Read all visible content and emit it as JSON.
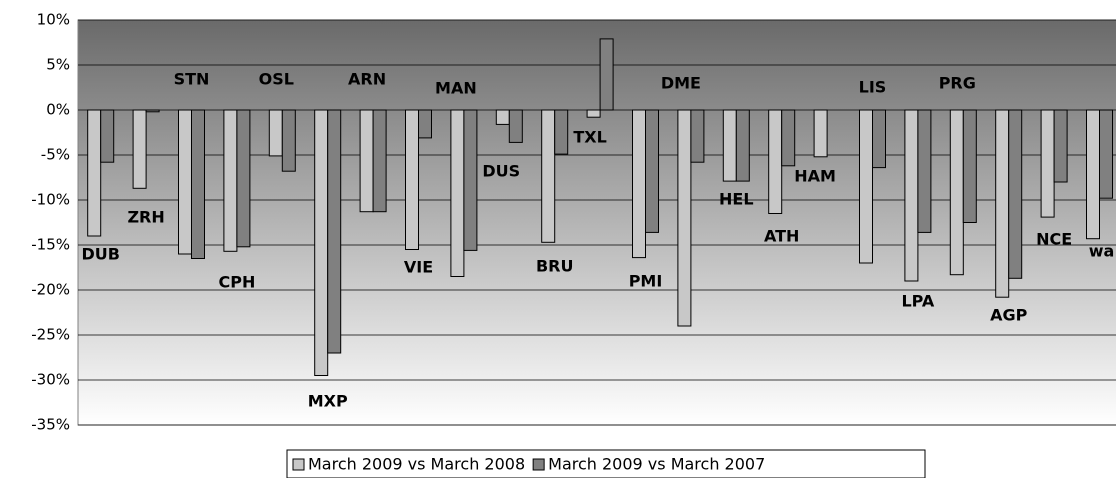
{
  "chart_data": {
    "type": "bar",
    "categories": [
      "DUB",
      "ZRH",
      "STN",
      "CPH",
      "OSL",
      "MXP",
      "ARN",
      "VIE",
      "MAN",
      "DUS",
      "BRU",
      "TXL",
      "PMI",
      "DME",
      "HEL",
      "ATH",
      "HAM",
      "LIS",
      "LPA",
      "PRG",
      "AGP",
      "NCE",
      "wa"
    ],
    "series": [
      {
        "name": "March 2009 vs March 2008",
        "color": "#c8c8c8",
        "values": [
          -14,
          -8.7,
          -16,
          -15.7,
          -5.1,
          -29.5,
          -11.3,
          -15.5,
          -18.5,
          -1.6,
          -14.7,
          -0.8,
          -16.4,
          -24,
          -7.9,
          -11.5,
          -5.2,
          -17,
          -19,
          -18.3,
          -20.8,
          -11.9,
          -14.3
        ]
      },
      {
        "name": "March 2009 vs March 2007",
        "color": "#808080",
        "values": [
          -5.8,
          -0.2,
          -16.5,
          -15.2,
          -6.8,
          -27,
          -11.3,
          -3.1,
          -15.6,
          -3.6,
          -4.9,
          7.9,
          -13.6,
          -5.8,
          -7.9,
          -6.2,
          null,
          -6.4,
          -13.6,
          -12.5,
          -18.7,
          -8,
          -9.8
        ]
      }
    ],
    "ylim": [
      -35,
      10
    ],
    "yticks": [
      {
        "value": -35,
        "label": "-35%"
      },
      {
        "value": -30,
        "label": "-30%"
      },
      {
        "value": -25,
        "label": "-25%"
      },
      {
        "value": -20,
        "label": "-20%"
      },
      {
        "value": -15,
        "label": "-15%"
      },
      {
        "value": -10,
        "label": "-10%"
      },
      {
        "value": -5,
        "label": "-5%"
      },
      {
        "value": 0,
        "label": "0%"
      },
      {
        "value": 5,
        "label": "5%"
      },
      {
        "value": 10,
        "label": "10%"
      }
    ],
    "grid": true,
    "legend": "bottom"
  }
}
